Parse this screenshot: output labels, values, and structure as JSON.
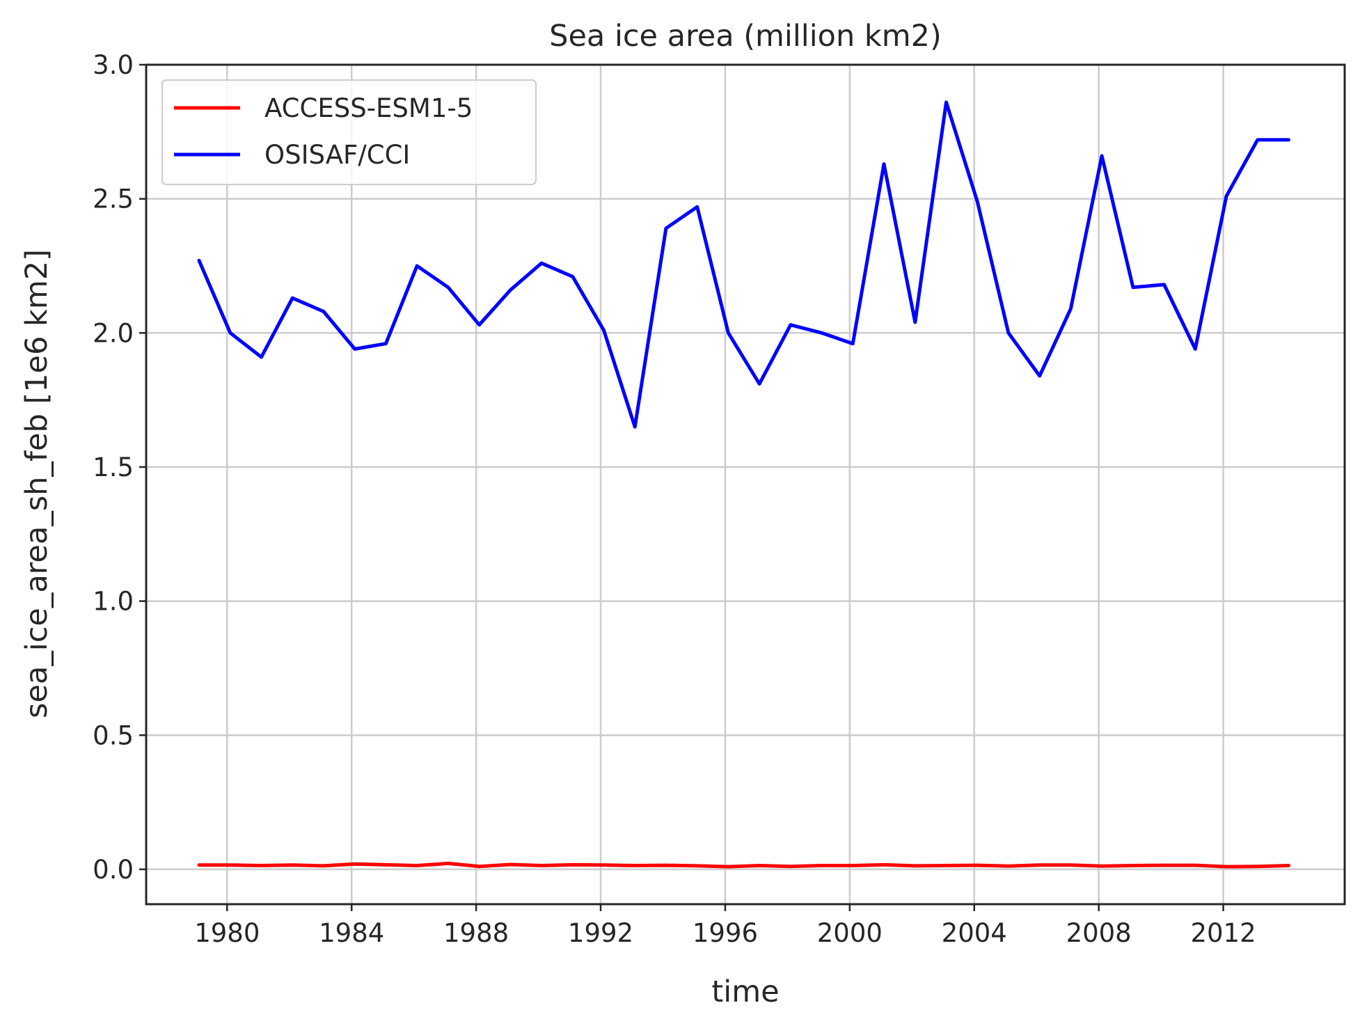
{
  "chart_data": {
    "type": "line",
    "title": "Sea ice area (million km2)",
    "xlabel": "time",
    "ylabel": "sea_ice_area_sh_feb [1e6 km2]",
    "xlim": [
      1977.4,
      2015.9
    ],
    "ylim": [
      -0.13,
      3.0
    ],
    "xticks": [
      1980,
      1984,
      1988,
      1992,
      1996,
      2000,
      2004,
      2008,
      2012
    ],
    "xtick_labels": [
      "1980",
      "1984",
      "1988",
      "1992",
      "1996",
      "2000",
      "2004",
      "2008",
      "2012"
    ],
    "yticks": [
      0.0,
      0.5,
      1.0,
      1.5,
      2.0,
      2.5,
      3.0
    ],
    "ytick_labels": [
      "0.0",
      "0.5",
      "1.0",
      "1.5",
      "2.0",
      "2.5",
      "3.0"
    ],
    "grid": true,
    "legend_position": "top-left",
    "x": [
      1979.1,
      1980.1,
      1981.1,
      1982.1,
      1983.1,
      1984.1,
      1985.1,
      1986.1,
      1987.1,
      1988.1,
      1989.1,
      1990.1,
      1991.1,
      1992.1,
      1993.1,
      1994.1,
      1995.1,
      1996.1,
      1997.1,
      1998.1,
      1999.1,
      2000.1,
      2001.1,
      2002.1,
      2003.1,
      2004.1,
      2005.1,
      2006.1,
      2007.1,
      2008.1,
      2009.1,
      2010.1,
      2011.1,
      2012.1,
      2013.1,
      2014.1
    ],
    "series": [
      {
        "name": "ACCESS-ESM1-5",
        "color": "#ff0000",
        "values": [
          0.016,
          0.016,
          0.014,
          0.016,
          0.013,
          0.02,
          0.017,
          0.014,
          0.022,
          0.011,
          0.018,
          0.014,
          0.017,
          0.016,
          0.014,
          0.015,
          0.013,
          0.01,
          0.014,
          0.011,
          0.014,
          0.014,
          0.017,
          0.013,
          0.014,
          0.015,
          0.012,
          0.016,
          0.016,
          0.012,
          0.014,
          0.015,
          0.015,
          0.01,
          0.011,
          0.014
        ]
      },
      {
        "name": "OSISAF/CCI",
        "color": "#0000ff",
        "values": [
          2.27,
          2.0,
          1.91,
          2.13,
          2.08,
          1.94,
          1.96,
          2.25,
          2.17,
          2.03,
          2.16,
          2.26,
          2.21,
          2.01,
          1.65,
          2.39,
          2.47,
          2.0,
          1.81,
          2.03,
          2.0,
          1.96,
          2.63,
          2.04,
          2.86,
          2.49,
          2.0,
          1.84,
          2.09,
          2.66,
          2.17,
          2.18,
          1.94,
          2.51,
          2.72,
          2.72
        ]
      }
    ]
  }
}
